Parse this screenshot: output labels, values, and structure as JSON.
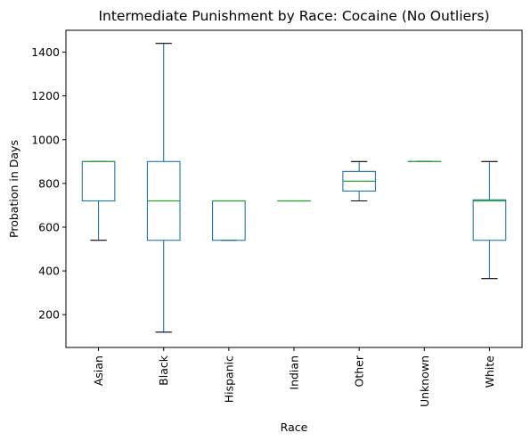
{
  "chart_data": {
    "type": "box",
    "title": "Intermediate Punishment by Race: Cocaine (No Outliers)",
    "xlabel": "Race",
    "ylabel": "Probation in Days",
    "ylim": [
      50,
      1500
    ],
    "yticks": [
      200,
      400,
      600,
      800,
      1000,
      1200,
      1400
    ],
    "grid": false,
    "categories": [
      "Asian",
      "Black",
      "Hispanic",
      "Indian",
      "Other",
      "Unknown",
      "White"
    ],
    "boxes": [
      {
        "category": "Asian",
        "whislo": 540,
        "q1": 720,
        "med": 900,
        "q3": 900,
        "whishi": 900
      },
      {
        "category": "Black",
        "whislo": 120,
        "q1": 540,
        "med": 720,
        "q3": 900,
        "whishi": 1440
      },
      {
        "category": "Hispanic",
        "whislo": 540,
        "q1": 540,
        "med": 720,
        "q3": 720,
        "whishi": 720
      },
      {
        "category": "Indian",
        "whislo": 720,
        "q1": 720,
        "med": 720,
        "q3": 720,
        "whishi": 720
      },
      {
        "category": "Other",
        "whislo": 720,
        "q1": 765,
        "med": 810,
        "q3": 855,
        "whishi": 900
      },
      {
        "category": "Unknown",
        "whislo": 900,
        "q1": 900,
        "med": 900,
        "q3": 900,
        "whishi": 900
      },
      {
        "category": "White",
        "whislo": 365,
        "q1": 540,
        "med": 720,
        "q3": 725,
        "whishi": 900
      }
    ],
    "colors": {
      "box": "#1f77b4",
      "median": "#2ca02c",
      "cap": "#000000"
    }
  }
}
